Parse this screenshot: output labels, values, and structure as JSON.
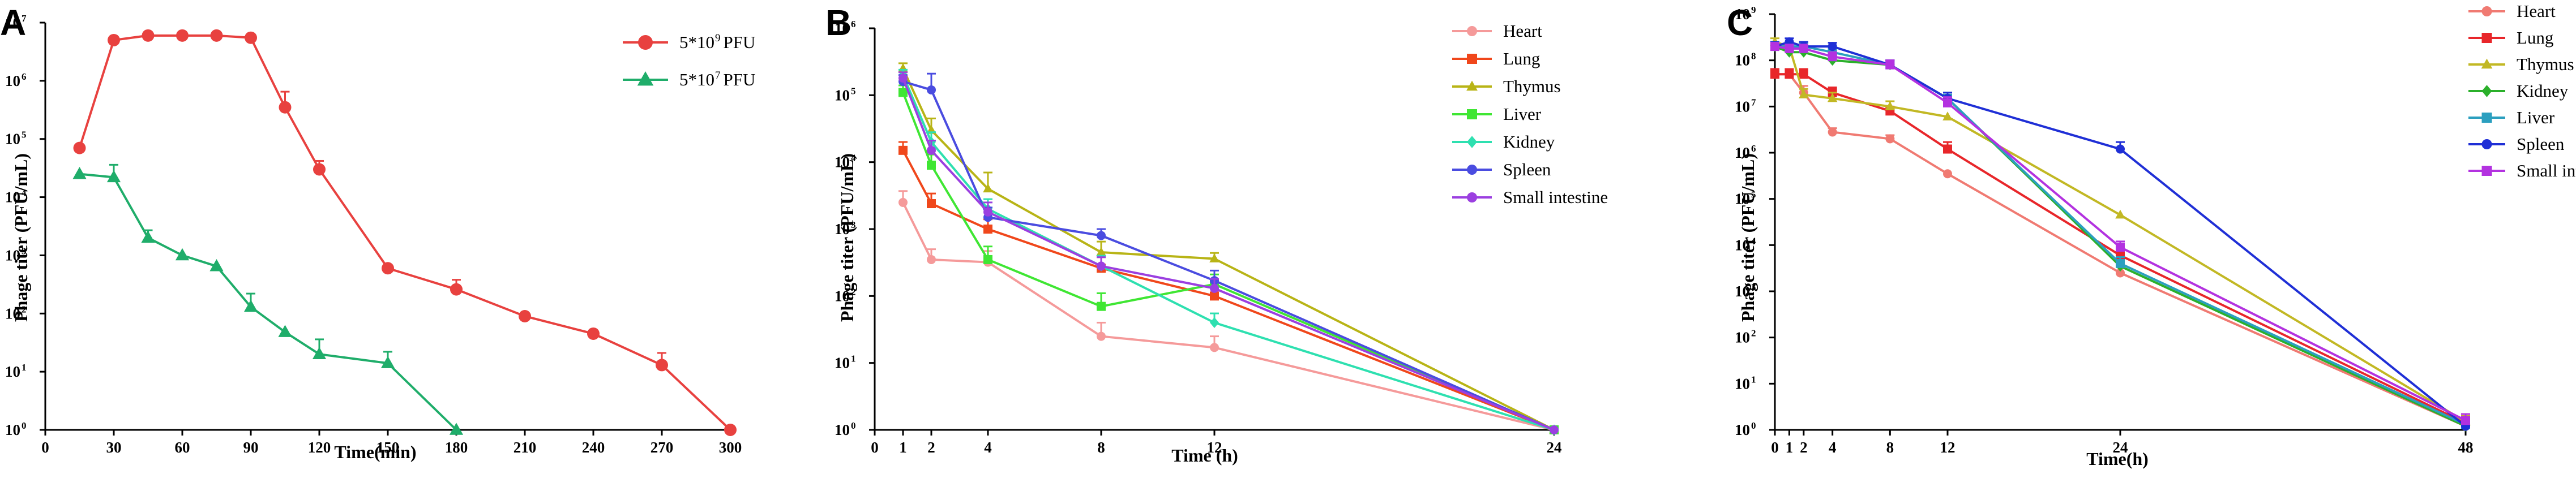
{
  "figure": {
    "panels": [
      "A",
      "B",
      "C"
    ]
  },
  "chart_data": [
    {
      "panel": "A",
      "type": "line",
      "yscale": "log",
      "xlabel": "Time(min)",
      "ylabel": "Phage titer (PFU/mL)",
      "xlim": [
        0,
        300
      ],
      "xticks": [
        "0",
        "30",
        "60",
        "90",
        "120",
        "150",
        "180",
        "210",
        "240",
        "270",
        "300"
      ],
      "ylim_exp": [
        0,
        7
      ],
      "ytick_exps": [
        "0",
        "1",
        "2",
        "3",
        "4",
        "5",
        "6",
        "7"
      ],
      "legend_position": "top-right",
      "series": [
        {
          "name": "5*10",
          "name_exp": "9",
          "name_suffix": "PFU",
          "color": "#e8413f",
          "marker": "circle",
          "x": [
            15,
            30,
            45,
            60,
            75,
            90,
            105,
            120,
            150,
            180,
            210,
            240,
            270,
            300
          ],
          "y": [
            70000,
            5000000,
            6000000,
            6000000,
            6000000,
            5500000,
            350000,
            30000,
            600,
            260,
            90,
            45,
            13,
            1
          ],
          "err_hi": [
            0,
            0,
            0,
            0,
            0,
            0,
            300000,
            12000,
            0,
            120,
            0,
            0,
            8,
            0
          ]
        },
        {
          "name": "5*10",
          "name_exp": "7",
          "name_suffix": "PFU",
          "color": "#1fad6a",
          "marker": "triangle",
          "x": [
            15,
            30,
            45,
            60,
            75,
            90,
            105,
            120,
            150,
            180
          ],
          "y": [
            25000,
            22000,
            2000,
            1000,
            650,
            130,
            48,
            20,
            14,
            1
          ],
          "err_hi": [
            0,
            14000,
            700,
            0,
            0,
            90,
            0,
            16,
            8,
            0
          ]
        }
      ]
    },
    {
      "panel": "B",
      "type": "line",
      "yscale": "log",
      "xlabel": "Time (h)",
      "ylabel": "Phage titer (PFU/mL)",
      "xlim": [
        0,
        24
      ],
      "xticks": [
        "0",
        "1",
        "2",
        "4",
        "8",
        "12",
        "24"
      ],
      "ylim_exp": [
        0,
        6
      ],
      "ytick_exps": [
        "0",
        "1",
        "2",
        "3",
        "4",
        "5",
        "6"
      ],
      "legend_position": "right",
      "series": [
        {
          "name": "Heart",
          "color": "#f59a9a",
          "marker": "circle",
          "x": [
            1,
            2,
            4,
            8,
            12,
            24
          ],
          "y": [
            2500,
            350,
            320,
            25,
            17,
            1
          ],
          "err_hi": [
            1200,
            150,
            150,
            15,
            8,
            0
          ]
        },
        {
          "name": "Lung",
          "color": "#f0471b",
          "marker": "square",
          "x": [
            1,
            2,
            4,
            8,
            12,
            24
          ],
          "y": [
            15000,
            2400,
            1000,
            260,
            100,
            1
          ],
          "err_hi": [
            5000,
            1000,
            400,
            120,
            40,
            0
          ]
        },
        {
          "name": "Thymus",
          "color": "#b8b416",
          "marker": "triangle",
          "x": [
            1,
            2,
            4,
            8,
            12,
            24
          ],
          "y": [
            250000,
            30000,
            4000,
            450,
            360,
            1
          ],
          "err_hi": [
            50000,
            15000,
            3000,
            200,
            80,
            0
          ]
        },
        {
          "name": "Liver",
          "color": "#3fe633",
          "marker": "square",
          "x": [
            1,
            2,
            4,
            8,
            12,
            24
          ],
          "y": [
            110000,
            9000,
            350,
            70,
            150,
            1
          ],
          "err_hi": [
            30000,
            4000,
            200,
            40,
            60,
            0
          ]
        },
        {
          "name": "Kidney",
          "color": "#2ee0b0",
          "marker": "diamond",
          "x": [
            1,
            2,
            4,
            8,
            12,
            24
          ],
          "y": [
            200000,
            20000,
            2000,
            280,
            40,
            1
          ],
          "err_hi": [
            40000,
            8000,
            800,
            120,
            15,
            0
          ]
        },
        {
          "name": "Spleen",
          "color": "#4a4ce0",
          "marker": "circle",
          "x": [
            1,
            2,
            4,
            8,
            12,
            24
          ],
          "y": [
            160000,
            120000,
            1500,
            800,
            170,
            1
          ],
          "err_hi": [
            40000,
            90000,
            600,
            200,
            70,
            0
          ]
        },
        {
          "name": "Small intestine",
          "color": "#9b3fe0",
          "marker": "circle",
          "x": [
            1,
            2,
            4,
            8,
            12,
            24
          ],
          "y": [
            180000,
            15000,
            1800,
            280,
            130,
            1
          ],
          "err_hi": [
            40000,
            6000,
            700,
            100,
            50,
            0
          ]
        }
      ]
    },
    {
      "panel": "C",
      "type": "line",
      "yscale": "log",
      "xlabel": "Time(h)",
      "ylabel": "Phage titer (PFU/mL)",
      "xlim": [
        0,
        48
      ],
      "xticks": [
        "0",
        "1",
        "2",
        "4",
        "8",
        "12",
        "24",
        "48"
      ],
      "ylim_exp": [
        0,
        9
      ],
      "ytick_exps": [
        "0",
        "1",
        "2",
        "3",
        "4",
        "5",
        "6",
        "7",
        "8",
        "9"
      ],
      "legend_position": "top-right",
      "series": [
        {
          "name": "Heart",
          "color": "#f07a72",
          "marker": "circle",
          "x": [
            0,
            1,
            2,
            4,
            8,
            12,
            24,
            48
          ],
          "y": [
            50000000,
            50000000,
            20000000,
            2800000,
            2000000,
            350000,
            2500,
            1.2
          ],
          "err_hi": [
            15000000,
            15000000,
            8000000,
            600000,
            400000,
            0,
            1000,
            0.5
          ]
        },
        {
          "name": "Lung",
          "color": "#e8262a",
          "marker": "square",
          "x": [
            0,
            1,
            2,
            4,
            8,
            12,
            24,
            48
          ],
          "y": [
            50000000,
            50000000,
            50000000,
            20000000,
            8000000,
            1200000,
            6000,
            1.4
          ],
          "err_hi": [
            15000000,
            15000000,
            15000000,
            6000000,
            2000000,
            500000,
            2000,
            0.5
          ]
        },
        {
          "name": "Thymus",
          "color": "#c2b824",
          "marker": "triangle",
          "x": [
            0,
            1,
            2,
            4,
            8,
            12,
            24,
            48
          ],
          "y": [
            250000000,
            200000000,
            18000000,
            15000000,
            10000000,
            6000000,
            45000,
            1.5
          ],
          "err_hi": [
            50000000,
            50000000,
            6000000,
            5000000,
            3000000,
            0,
            0,
            0.5
          ]
        },
        {
          "name": "Kidney",
          "color": "#2bb02b",
          "marker": "diamond",
          "x": [
            0,
            1,
            2,
            4,
            8,
            12,
            24,
            48
          ],
          "y": [
            200000000,
            150000000,
            150000000,
            100000000,
            80000000,
            15000000,
            3500,
            1.2
          ],
          "err_hi": [
            40000000,
            40000000,
            40000000,
            30000000,
            20000000,
            5000000,
            1000,
            0.5
          ]
        },
        {
          "name": "Liver",
          "color": "#2b9fbf",
          "marker": "square",
          "x": [
            0,
            1,
            2,
            4,
            8,
            12,
            24,
            48
          ],
          "y": [
            200000000,
            200000000,
            200000000,
            150000000,
            80000000,
            15000000,
            4000,
            1.3
          ],
          "err_hi": [
            50000000,
            50000000,
            50000000,
            30000000,
            20000000,
            5000000,
            1500,
            0.5
          ]
        },
        {
          "name": "Spleen",
          "color": "#1f2fd6",
          "marker": "circle",
          "x": [
            0,
            1,
            2,
            4,
            8,
            12,
            24,
            48
          ],
          "y": [
            200000000,
            250000000,
            200000000,
            200000000,
            80000000,
            15000000,
            1200000,
            1.2
          ],
          "err_hi": [
            50000000,
            50000000,
            50000000,
            40000000,
            20000000,
            5000000,
            500000,
            0.5
          ]
        },
        {
          "name": "Small intestine",
          "color": "#b332e0",
          "marker": "square",
          "x": [
            0,
            1,
            2,
            4,
            8,
            12,
            24,
            48
          ],
          "y": [
            200000000,
            180000000,
            180000000,
            120000000,
            80000000,
            12000000,
            9000,
            1.6
          ],
          "err_hi": [
            40000000,
            40000000,
            40000000,
            30000000,
            20000000,
            4000000,
            3000,
            0.6
          ]
        }
      ]
    }
  ]
}
